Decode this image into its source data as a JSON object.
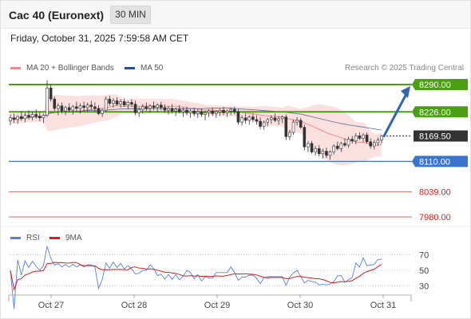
{
  "header": {
    "title": "Cac 40 (Euronext)",
    "timeframe": "30 MIN"
  },
  "datetime": "Friday, October 31, 2025 7:59:58 AM CET",
  "legend": {
    "ma20": {
      "label": "MA 20 + Bollinger Bands",
      "color": "#f08a8a"
    },
    "ma50": {
      "label": "MA 50",
      "color": "#2a4f8a"
    },
    "copyright": "Research © 2025 Trading Central"
  },
  "rsi_legend": {
    "rsi": {
      "label": "RSI",
      "color": "#5b7fd6"
    },
    "ma9": {
      "label": "9MA",
      "color": "#d21f1f"
    }
  },
  "colors": {
    "resistance": "#4aa012",
    "pivot": "#3b73d1",
    "support": "#e06a6a",
    "last": "#333333",
    "arrow": "#2e64b4",
    "band_fill": "#f9d6d6"
  },
  "price_levels": [
    {
      "label": "8290.00",
      "type": "resistance"
    },
    {
      "label": "8226.00",
      "type": "resistance"
    },
    {
      "label": "8169.50",
      "type": "last"
    },
    {
      "label": "8110.00",
      "type": "pivot"
    },
    {
      "label": "8039.00",
      "type": "support"
    },
    {
      "label": "7980.00",
      "type": "support"
    }
  ],
  "x_axis": [
    "Oct 27",
    "Oct 28",
    "Oct 29",
    "Oct 30",
    "Oct 31"
  ],
  "rsi_axis": [
    "70",
    "50",
    "30"
  ],
  "chart_data": {
    "type": "candlestick",
    "xlabel": "",
    "ylabel": "",
    "ylim": [
      7970,
      8300
    ],
    "candles": [
      [
        8205,
        8220,
        8195,
        8212
      ],
      [
        8212,
        8222,
        8200,
        8208
      ],
      [
        8208,
        8218,
        8198,
        8215
      ],
      [
        8215,
        8228,
        8205,
        8210
      ],
      [
        8210,
        8224,
        8202,
        8218
      ],
      [
        8218,
        8230,
        8208,
        8214
      ],
      [
        8214,
        8226,
        8206,
        8220
      ],
      [
        8220,
        8232,
        8210,
        8216
      ],
      [
        8216,
        8226,
        8204,
        8212
      ],
      [
        8212,
        8222,
        8200,
        8218
      ],
      [
        8218,
        8300,
        8214,
        8282
      ],
      [
        8282,
        8290,
        8250,
        8256
      ],
      [
        8256,
        8262,
        8228,
        8234
      ],
      [
        8234,
        8246,
        8218,
        8240
      ],
      [
        8240,
        8248,
        8222,
        8228
      ],
      [
        8228,
        8240,
        8218,
        8236
      ],
      [
        8236,
        8246,
        8224,
        8230
      ],
      [
        8230,
        8242,
        8220,
        8238
      ],
      [
        8238,
        8250,
        8226,
        8234
      ],
      [
        8234,
        8246,
        8222,
        8240
      ],
      [
        8240,
        8250,
        8228,
        8236
      ],
      [
        8236,
        8248,
        8226,
        8242
      ],
      [
        8242,
        8252,
        8230,
        8238
      ],
      [
        8238,
        8248,
        8226,
        8234
      ],
      [
        8234,
        8242,
        8218,
        8222
      ],
      [
        8222,
        8234,
        8214,
        8230
      ],
      [
        8230,
        8262,
        8226,
        8256
      ],
      [
        8256,
        8264,
        8240,
        8246
      ],
      [
        8246,
        8258,
        8236,
        8252
      ],
      [
        8252,
        8260,
        8240,
        8244
      ],
      [
        8244,
        8256,
        8236,
        8250
      ],
      [
        8250,
        8258,
        8238,
        8242
      ],
      [
        8242,
        8252,
        8232,
        8248
      ],
      [
        8248,
        8256,
        8238,
        8244
      ],
      [
        8244,
        8252,
        8218,
        8224
      ],
      [
        8224,
        8238,
        8214,
        8232
      ],
      [
        8232,
        8244,
        8222,
        8238
      ],
      [
        8238,
        8248,
        8228,
        8234
      ],
      [
        8234,
        8244,
        8224,
        8240
      ],
      [
        8240,
        8250,
        8230,
        8236
      ],
      [
        8236,
        8246,
        8226,
        8242
      ],
      [
        8242,
        8250,
        8230,
        8236
      ],
      [
        8236,
        8244,
        8224,
        8230
      ],
      [
        8230,
        8240,
        8220,
        8234
      ],
      [
        8234,
        8244,
        8222,
        8228
      ],
      [
        8228,
        8236,
        8216,
        8232
      ],
      [
        8232,
        8242,
        8222,
        8226
      ],
      [
        8226,
        8236,
        8214,
        8230
      ],
      [
        8230,
        8238,
        8218,
        8224
      ],
      [
        8224,
        8232,
        8212,
        8228
      ],
      [
        8228,
        8236,
        8216,
        8222
      ],
      [
        8222,
        8232,
        8212,
        8226
      ],
      [
        8226,
        8234,
        8214,
        8220
      ],
      [
        8220,
        8228,
        8206,
        8224
      ],
      [
        8224,
        8232,
        8214,
        8228
      ],
      [
        8228,
        8236,
        8216,
        8222
      ],
      [
        8222,
        8230,
        8212,
        8226
      ],
      [
        8226,
        8234,
        8216,
        8230
      ],
      [
        8230,
        8238,
        8218,
        8224
      ],
      [
        8224,
        8232,
        8214,
        8228
      ],
      [
        8228,
        8236,
        8218,
        8232
      ],
      [
        8232,
        8238,
        8220,
        8226
      ],
      [
        8226,
        8232,
        8196,
        8202
      ],
      [
        8202,
        8218,
        8194,
        8212
      ],
      [
        8212,
        8222,
        8198,
        8206
      ],
      [
        8206,
        8218,
        8196,
        8214
      ],
      [
        8214,
        8222,
        8202,
        8208
      ],
      [
        8208,
        8218,
        8196,
        8204
      ],
      [
        8204,
        8214,
        8186,
        8192
      ],
      [
        8192,
        8206,
        8184,
        8202
      ],
      [
        8202,
        8212,
        8192,
        8208
      ],
      [
        8208,
        8218,
        8198,
        8212
      ],
      [
        8212,
        8222,
        8202,
        8206
      ],
      [
        8206,
        8216,
        8196,
        8210
      ],
      [
        8210,
        8218,
        8200,
        8214
      ],
      [
        8214,
        8220,
        8160,
        8168
      ],
      [
        8168,
        8184,
        8160,
        8178
      ],
      [
        8178,
        8208,
        8172,
        8202
      ],
      [
        8202,
        8214,
        8194,
        8206
      ],
      [
        8206,
        8212,
        8186,
        8190
      ],
      [
        8190,
        8196,
        8136,
        8144
      ],
      [
        8144,
        8158,
        8132,
        8152
      ],
      [
        8152,
        8158,
        8128,
        8132
      ],
      [
        8132,
        8146,
        8124,
        8140
      ],
      [
        8140,
        8148,
        8122,
        8128
      ],
      [
        8128,
        8140,
        8116,
        8134
      ],
      [
        8134,
        8142,
        8118,
        8124
      ],
      [
        8124,
        8136,
        8114,
        8132
      ],
      [
        8132,
        8150,
        8126,
        8146
      ],
      [
        8146,
        8156,
        8136,
        8140
      ],
      [
        8140,
        8156,
        8132,
        8152
      ],
      [
        8152,
        8164,
        8144,
        8148
      ],
      [
        8148,
        8168,
        8142,
        8162
      ],
      [
        8162,
        8170,
        8152,
        8158
      ],
      [
        8158,
        8176,
        8150,
        8170
      ],
      [
        8170,
        8178,
        8160,
        8164
      ],
      [
        8164,
        8176,
        8156,
        8172
      ],
      [
        8172,
        8178,
        8152,
        8156
      ],
      [
        8156,
        8164,
        8140,
        8146
      ],
      [
        8146,
        8160,
        8138,
        8154
      ],
      [
        8154,
        8166,
        8146,
        8160
      ],
      [
        8160,
        8172,
        8152,
        8169.5
      ]
    ]
  }
}
